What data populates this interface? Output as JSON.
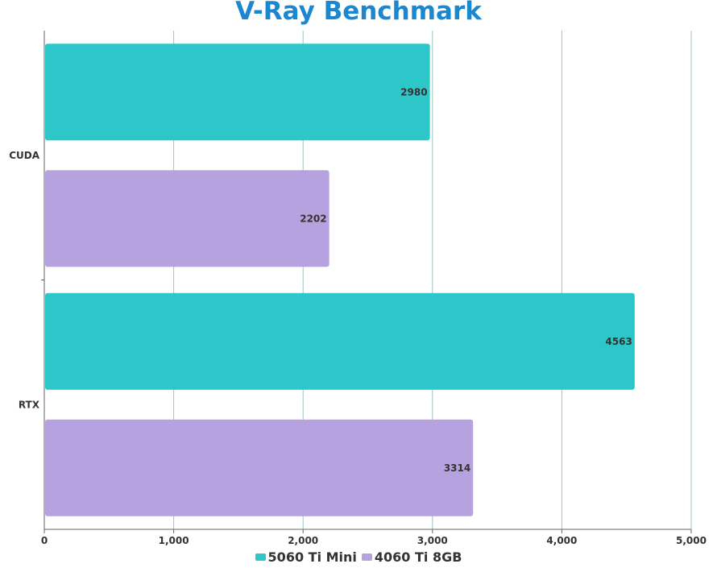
{
  "chart_data": {
    "type": "bar",
    "orientation": "horizontal",
    "title": "V-Ray Benchmark",
    "categories": [
      "CUDA",
      "RTX"
    ],
    "series": [
      {
        "name": "5060 Ti Mini",
        "color": "#2ec7c9",
        "values": [
          2980,
          4563
        ]
      },
      {
        "name": "4060 Ti 8GB",
        "color": "#b6a2de",
        "values": [
          2202,
          3314
        ]
      }
    ],
    "xlim": [
      0,
      5000
    ],
    "xticks": [
      0,
      1000,
      2000,
      3000,
      4000,
      5000
    ],
    "xtick_labels": [
      "0",
      "1,000",
      "2,000",
      "3,000",
      "4,000",
      "5,000"
    ],
    "xlabel": "",
    "ylabel": "",
    "grid": true,
    "legend_position": "bottom-center"
  }
}
